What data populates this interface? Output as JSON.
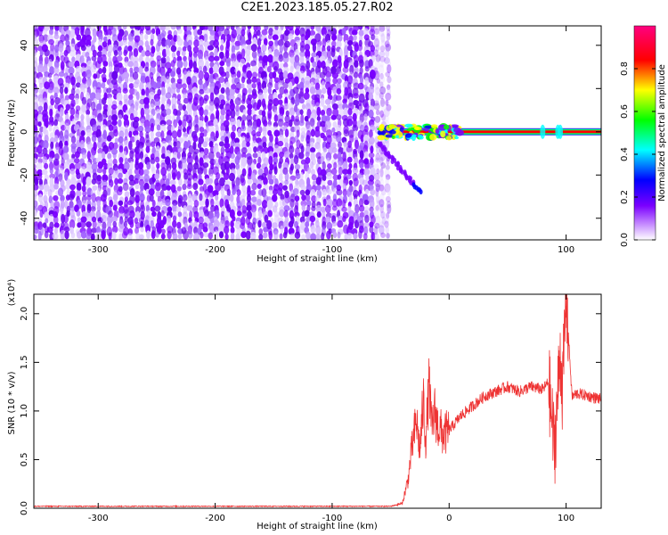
{
  "title": "C2E1.2023.185.05.27.R02",
  "chart_data": [
    {
      "type": "heatmap",
      "xlabel": "Height of straight line (km)",
      "ylabel": "Frequency (Hz)",
      "xlim": [
        -355,
        130
      ],
      "ylim": [
        -50,
        49
      ],
      "xticks": [
        -300,
        -200,
        -100,
        0,
        100
      ],
      "xtick_labels": [
        "-300",
        "-200",
        "-100",
        "0",
        "100"
      ],
      "yticks": [
        -40,
        -20,
        0,
        20,
        40
      ],
      "ytick_labels": [
        "-40",
        "-20",
        "0",
        "20",
        "40"
      ],
      "colorbar": {
        "label": "Normalized spectral amplitude",
        "range": [
          0,
          1
        ],
        "ticks": [
          0.0,
          0.2,
          0.4,
          0.6,
          0.8
        ],
        "tick_labels": [
          "0.0",
          "0.2",
          "0.4",
          "0.6",
          "0.8"
        ],
        "colors": [
          "#ffffff",
          "#7a00ff",
          "#0000ff",
          "#00ffff",
          "#00ff00",
          "#ffff00",
          "#ff0000",
          "#ff00aa"
        ]
      },
      "features": {
        "noise_region_x": [
          -355,
          -58
        ],
        "carrier_frequency": 0,
        "carrier_x": [
          -60,
          130
        ],
        "sloped_trace": {
          "x": [
            -60,
            -25
          ],
          "y": [
            -5,
            -28
          ]
        },
        "carrier_band_color": "#ff0000"
      }
    },
    {
      "type": "line",
      "xlabel": "Height of straight line (km)",
      "ylabel": "SNR (10 * v/v)",
      "yscale_label": "(x10⁴)",
      "xlim": [
        -355,
        130
      ],
      "ylim": [
        0,
        2.2
      ],
      "xticks": [
        -300,
        -200,
        -100,
        0,
        100
      ],
      "xtick_labels": [
        "-300",
        "-200",
        "-100",
        "0",
        "100"
      ],
      "yticks": [
        0.0,
        0.5,
        1.0,
        1.5,
        2.0
      ],
      "ytick_labels": [
        "0.0",
        "0.5",
        "1.0",
        "1.5",
        "2.0"
      ],
      "series": [
        {
          "color": "#ee3333",
          "x": [
            -355,
            -300,
            -200,
            -100,
            -50,
            -40,
            -35,
            -32,
            -30,
            -28,
            -25,
            -22,
            -20,
            -17,
            -15,
            -12,
            -10,
            -5,
            0,
            10,
            20,
            30,
            40,
            50,
            60,
            70,
            80,
            85,
            90,
            95,
            97,
            100,
            105,
            110,
            120,
            130
          ],
          "y": [
            0.02,
            0.02,
            0.02,
            0.02,
            0.02,
            0.05,
            0.3,
            0.6,
            0.75,
            0.9,
            0.6,
            1.1,
            0.7,
            1.3,
            0.8,
            1.0,
            0.85,
            0.75,
            0.8,
            0.95,
            1.05,
            1.15,
            1.2,
            1.25,
            1.2,
            1.25,
            1.22,
            1.3,
            0.6,
            1.6,
            1.2,
            2.2,
            1.15,
            1.18,
            1.15,
            1.12
          ]
        }
      ]
    }
  ]
}
